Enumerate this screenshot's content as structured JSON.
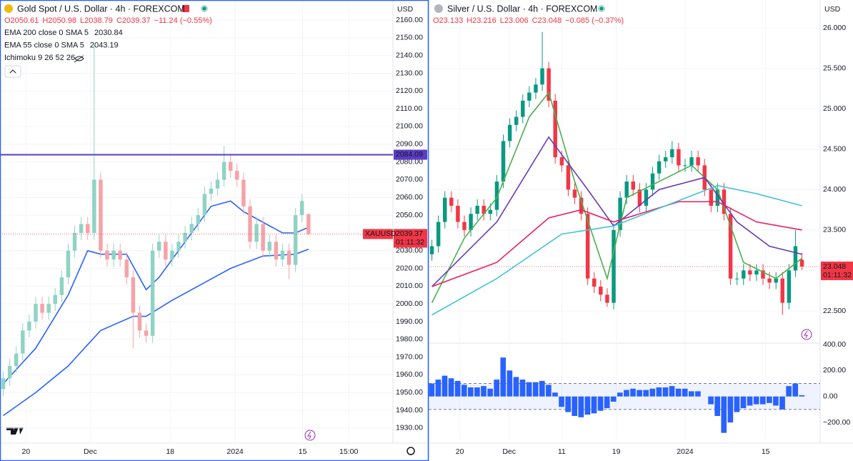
{
  "chart_data": [
    {
      "type": "candlestick",
      "title": "Gold Spot / U.S. Dollar · 4h · FOREXCOM",
      "quote": [
        "O2050.61",
        "H2050.98",
        "L2038.79",
        "C2039.37",
        "−11.24 (−0.55%)"
      ],
      "currency": "USD",
      "indicators": [
        {
          "name": "EMA 200 close 0 SMA 5",
          "value": 2030.84,
          "color": "#2962ff",
          "x": [
            0,
            5,
            10,
            15,
            20,
            22,
            26,
            30,
            35,
            40,
            45,
            47
          ],
          "values": [
            1937,
            1950,
            1965,
            1985,
            1993,
            1993,
            2002,
            2010,
            2020,
            2027,
            2028,
            2030.84
          ]
        },
        {
          "name": "EMA 55 close 0 SMA 5",
          "value": 2043.19,
          "color": "#2962ff",
          "x": [
            0,
            5,
            10,
            13,
            15,
            19,
            22,
            24,
            28,
            32,
            35,
            37,
            40,
            43,
            45,
            47
          ],
          "values": [
            1955,
            1975,
            2005,
            2030,
            2028,
            2028,
            2008,
            2015,
            2035,
            2055,
            2058,
            2052,
            2046,
            2040,
            2040,
            2043.19
          ]
        },
        {
          "name": "Ichimoku 9 26 52 26"
        }
      ],
      "up_color": "#8fd3c3",
      "down_color": "#f5a3a8",
      "open": [
        1952,
        1958,
        1965,
        1972,
        1985,
        1990,
        2000,
        1995,
        2000,
        2005,
        2015,
        2030,
        2040,
        2045,
        2040,
        2070,
        2030,
        2025,
        2030,
        2025,
        2015,
        1995,
        1985,
        1982,
        2030,
        2035,
        2025,
        2030,
        2035,
        2040,
        2045,
        2050,
        2062,
        2065,
        2070,
        2080,
        2075,
        2070,
        2055,
        2035,
        2045,
        2030,
        2035,
        2025,
        2030,
        2022,
        2050,
        2050.61
      ],
      "high": [
        1962,
        1969,
        1976,
        1989,
        1994,
        2004,
        2004,
        2004,
        2009,
        2019,
        2034,
        2044,
        2049,
        2049,
        2146,
        2074,
        2034,
        2034,
        2034,
        2029,
        2019,
        1999,
        1989,
        2034,
        2039,
        2039,
        2034,
        2039,
        2044,
        2049,
        2054,
        2066,
        2069,
        2074,
        2089,
        2084,
        2079,
        2074,
        2059,
        2049,
        2049,
        2039,
        2039,
        2034,
        2034,
        2054,
        2062,
        2050.98
      ],
      "low": [
        1948,
        1954,
        1961,
        1968,
        1981,
        1986,
        1991,
        1991,
        1996,
        2001,
        2011,
        2026,
        2036,
        2036,
        2036,
        2026,
        2021,
        2021,
        2021,
        2011,
        1975,
        1981,
        1978,
        1978,
        2026,
        2021,
        2021,
        2026,
        2031,
        2036,
        2041,
        2046,
        2058,
        2061,
        2066,
        2071,
        2066,
        2051,
        2031,
        2031,
        2026,
        2026,
        2021,
        2021,
        2014,
        2018,
        2046,
        2038.79
      ],
      "close": [
        1958,
        1965,
        1972,
        1985,
        1990,
        2000,
        1995,
        2000,
        2005,
        2015,
        2030,
        2040,
        2045,
        2040,
        2070,
        2030,
        2025,
        2030,
        2025,
        2015,
        1995,
        1985,
        1982,
        2030,
        2035,
        2025,
        2030,
        2035,
        2040,
        2045,
        2050,
        2062,
        2065,
        2070,
        2080,
        2075,
        2070,
        2055,
        2035,
        2045,
        2030,
        2035,
        2025,
        2030,
        2022,
        2050,
        2058,
        2039.37
      ],
      "hline": {
        "value": 2084.09,
        "color": "#5b3cc4"
      },
      "last": {
        "symbol": "XAUUSD",
        "value": 2039.37,
        "countdown": "01:11:32",
        "color": "#f23645"
      },
      "xlim": [
        -0.5,
        60
      ],
      "xticks": [
        {
          "value": 3.5,
          "label": "20"
        },
        {
          "value": 13.4,
          "label": "Dec"
        },
        {
          "value": 25.7,
          "label": "18"
        },
        {
          "value": 35.7,
          "label": "2024"
        },
        {
          "value": 46.1,
          "label": "15"
        },
        {
          "value": 53.2,
          "label": "15:00"
        }
      ],
      "ylim": [
        1921.5,
        2171.3
      ],
      "yticks": [
        {
          "value": 1930,
          "label": "1930.00"
        },
        {
          "value": 1940,
          "label": "1940.00"
        },
        {
          "value": 1950,
          "label": "1950.00"
        },
        {
          "value": 1960,
          "label": "1960.00"
        },
        {
          "value": 1970,
          "label": "1970.00"
        },
        {
          "value": 1980,
          "label": "1980.00"
        },
        {
          "value": 1990,
          "label": "1990.00"
        },
        {
          "value": 2000,
          "label": "2000.00"
        },
        {
          "value": 2010,
          "label": "2010.00"
        },
        {
          "value": 2020,
          "label": "2020.00"
        },
        {
          "value": 2030,
          "label": "2030.00"
        },
        {
          "value": 2040,
          "label": "2040.00"
        },
        {
          "value": 2050,
          "label": "2050.00"
        },
        {
          "value": 2060,
          "label": "2060.00"
        },
        {
          "value": 2070,
          "label": "2070.00"
        },
        {
          "value": 2080,
          "label": "2080.00"
        },
        {
          "value": 2090,
          "label": "2090.00"
        },
        {
          "value": 2100,
          "label": "2100.00"
        },
        {
          "value": 2110,
          "label": "2110.00"
        },
        {
          "value": 2120,
          "label": "2120.00"
        },
        {
          "value": 2130,
          "label": "2130.00"
        },
        {
          "value": 2140,
          "label": "2140.00"
        },
        {
          "value": 2150,
          "label": "2150.00"
        },
        {
          "value": 2160,
          "label": "2160.00"
        }
      ],
      "grid": true
    },
    {
      "type": "candlestick",
      "title": "Silver / U.S. Dollar · 4h · FOREXCOM",
      "quote": [
        "O23.133",
        "H23.216",
        "L23.006",
        "C23.048",
        "−0.085 (−0.37%)"
      ],
      "currency": "USD",
      "lines": [
        {
          "color": "#4caf50",
          "x": [
            0,
            5,
            10,
            15,
            18,
            22,
            27,
            30,
            35,
            40,
            44,
            48,
            53,
            57
          ],
          "values": [
            22.6,
            23.4,
            23.9,
            24.9,
            25.2,
            24.1,
            22.9,
            23.9,
            24.1,
            24.3,
            24.0,
            23.1,
            22.9,
            23.15
          ]
        },
        {
          "color": "#673ab7",
          "x": [
            0,
            10,
            18,
            24,
            28,
            35,
            42,
            47,
            52,
            57
          ],
          "values": [
            22.8,
            23.6,
            24.65,
            24.0,
            23.55,
            24.0,
            24.15,
            23.6,
            23.3,
            23.2
          ]
        },
        {
          "color": "#e91e63",
          "x": [
            0,
            10,
            18,
            23,
            28,
            38,
            44,
            50,
            57
          ],
          "values": [
            22.8,
            23.1,
            23.65,
            23.75,
            23.6,
            23.85,
            23.85,
            23.6,
            23.5
          ]
        },
        {
          "color": "#40c4d8",
          "x": [
            0,
            10,
            20,
            28,
            36,
            44,
            50,
            57
          ],
          "values": [
            22.45,
            22.9,
            23.45,
            23.55,
            23.8,
            24.05,
            23.95,
            23.8
          ]
        }
      ],
      "up_color": "#089981",
      "down_color": "#f23645",
      "open": [
        23.2,
        23.3,
        23.6,
        23.9,
        23.8,
        23.6,
        23.5,
        23.7,
        23.8,
        23.7,
        23.75,
        24.1,
        24.6,
        24.8,
        24.9,
        25.1,
        25.2,
        25.3,
        25.5,
        25.1,
        24.4,
        24.3,
        24.0,
        23.9,
        23.7,
        22.9,
        22.8,
        22.7,
        22.6,
        23.5,
        23.9,
        24.1,
        24.0,
        23.8,
        24.0,
        24.2,
        24.35,
        24.4,
        24.5,
        24.3,
        24.3,
        24.4,
        24.3,
        24.0,
        23.8,
        24.0,
        23.7,
        22.9,
        22.9,
        23.0,
        22.95,
        23.0,
        22.9,
        22.85,
        22.9,
        22.6,
        23.0,
        23.133
      ],
      "high": [
        23.38,
        23.68,
        23.98,
        23.98,
        23.88,
        23.68,
        23.78,
        23.88,
        23.88,
        23.83,
        24.18,
        24.68,
        24.88,
        24.98,
        25.18,
        25.28,
        25.38,
        25.95,
        25.58,
        25.18,
        24.48,
        24.38,
        24.08,
        23.98,
        23.78,
        22.98,
        22.88,
        22.78,
        23.58,
        23.98,
        24.18,
        24.18,
        24.08,
        24.08,
        24.28,
        24.43,
        24.48,
        24.6,
        24.58,
        24.38,
        24.48,
        24.48,
        24.38,
        24.08,
        24.08,
        24.08,
        23.78,
        22.98,
        23.08,
        23.08,
        23.08,
        23.08,
        22.98,
        22.98,
        22.98,
        23.08,
        23.5,
        23.216
      ],
      "low": [
        23.12,
        23.22,
        23.52,
        23.72,
        23.52,
        23.42,
        23.42,
        23.62,
        23.62,
        23.62,
        23.67,
        24.02,
        24.52,
        24.72,
        24.82,
        25.02,
        25.12,
        25.22,
        25.02,
        24.32,
        24.22,
        23.92,
        23.82,
        23.62,
        22.82,
        22.72,
        22.62,
        22.55,
        22.52,
        23.42,
        23.82,
        23.92,
        23.72,
        23.72,
        23.92,
        24.12,
        24.27,
        24.32,
        24.22,
        24.22,
        24.22,
        24.22,
        23.92,
        23.72,
        23.72,
        23.62,
        22.82,
        22.82,
        22.82,
        22.87,
        22.87,
        22.82,
        22.77,
        22.77,
        22.45,
        22.52,
        22.92,
        23.006
      ],
      "close": [
        23.3,
        23.6,
        23.9,
        23.8,
        23.6,
        23.5,
        23.7,
        23.8,
        23.7,
        23.75,
        24.1,
        24.6,
        24.8,
        24.9,
        25.1,
        25.2,
        25.3,
        25.5,
        25.1,
        24.4,
        24.3,
        24.0,
        23.9,
        23.7,
        22.9,
        22.8,
        22.7,
        22.6,
        23.5,
        23.9,
        24.1,
        24.0,
        23.8,
        24.0,
        24.2,
        24.35,
        24.4,
        24.5,
        24.3,
        24.3,
        24.4,
        24.3,
        24.0,
        23.8,
        24.0,
        23.7,
        22.9,
        22.9,
        23.0,
        22.95,
        23.0,
        22.9,
        22.85,
        22.9,
        22.6,
        23.0,
        23.3,
        23.048
      ],
      "last": {
        "value": 23.048,
        "countdown": "01:11:32",
        "color": "#f23645"
      },
      "xlim": [
        -0.5,
        59.8
      ],
      "xticks": [
        {
          "value": 4.3,
          "label": "20"
        },
        {
          "value": 11.9,
          "label": "Dec"
        },
        {
          "value": 20.0,
          "label": "11"
        },
        {
          "value": 28.4,
          "label": "19"
        },
        {
          "value": 39.0,
          "label": "2024"
        },
        {
          "value": 51.4,
          "label": "15"
        }
      ],
      "ylim": [
        22.102,
        26.345
      ],
      "yticks": [
        {
          "value": 22.5,
          "label": "22.500"
        },
        {
          "value": 23,
          "label": "23.000"
        },
        {
          "value": 23.5,
          "label": "23.500"
        },
        {
          "value": 24,
          "label": "24.000"
        },
        {
          "value": 24.5,
          "label": "24.500"
        },
        {
          "value": 25,
          "label": "25.000"
        },
        {
          "value": 25.5,
          "label": "25.500"
        },
        {
          "value": 26,
          "label": "26.000"
        }
      ],
      "grid": true,
      "oscillator": {
        "type": "histogram",
        "color": "#2962ff",
        "values": [
          100,
          130,
          160,
          140,
          120,
          90,
          70,
          70,
          80,
          60,
          130,
          300,
          200,
          150,
          130,
          110,
          110,
          120,
          90,
          30,
          -80,
          -120,
          -150,
          -160,
          -140,
          -130,
          -110,
          -90,
          -40,
          30,
          50,
          60,
          50,
          50,
          60,
          70,
          70,
          80,
          60,
          60,
          40,
          40,
          0,
          -60,
          -150,
          -280,
          -200,
          -120,
          -90,
          -70,
          -60,
          -60,
          -50,
          -70,
          -100,
          80,
          100,
          10
        ],
        "band": [
          -100,
          100
        ],
        "ylim": [
          -331.5,
          411
        ],
        "yticks": [
          {
            "value": -200,
            "label": "−200.00"
          },
          {
            "value": 0,
            "label": "0.00"
          },
          {
            "value": 200,
            "label": "200.00"
          },
          {
            "value": 400,
            "label": "400.00"
          }
        ]
      }
    }
  ]
}
